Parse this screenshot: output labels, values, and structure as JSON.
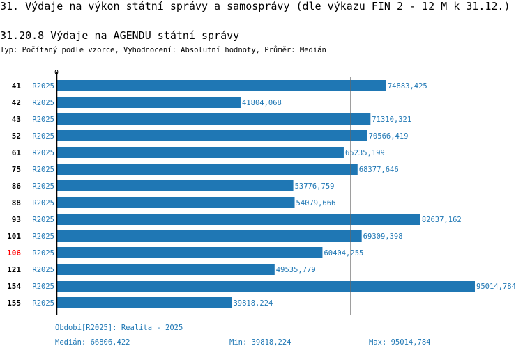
{
  "title": "31. Výdaje na výkon státní správy a samosprávy (dle výkazu FIN 2 - 12 M k 31.12.)",
  "subtitle": "31.20.8 Výdaje na AGENDU státní správy",
  "info": "Typ: Počítaný podle vzorce, Vyhodnocení: Absolutní hodnoty, Průměr: Medián",
  "chart_data": {
    "type": "bar",
    "orientation": "horizontal",
    "axis_zero_label": "0",
    "xlim": [
      0,
      95014.784
    ],
    "categories": [
      "41",
      "42",
      "43",
      "52",
      "61",
      "75",
      "86",
      "88",
      "93",
      "101",
      "106",
      "121",
      "154",
      "155"
    ],
    "highlight": "106",
    "highlight_color": "#ff0000",
    "bar_color": "#1f77b4",
    "period": "R2025",
    "values": [
      74883.425,
      41804.068,
      71310.321,
      70566.419,
      65235.199,
      68377.646,
      53776.759,
      54079.666,
      82637.162,
      69309.398,
      60404.255,
      49535.779,
      95014.784,
      39818.224
    ],
    "value_labels": [
      "74883,425",
      "41804,068",
      "71310,321",
      "70566,419",
      "65235,199",
      "68377,646",
      "53776,759",
      "54079,666",
      "82637,162",
      "69309,398",
      "60404,255",
      "49535,779",
      "95014,784",
      "39818,224"
    ],
    "median": 66806.422
  },
  "footer": {
    "period": "Období[R2025]: Realita - 2025",
    "median": "Medián: 66806,422",
    "min": "Min: 39818,224",
    "max": "Max: 95014,784"
  }
}
